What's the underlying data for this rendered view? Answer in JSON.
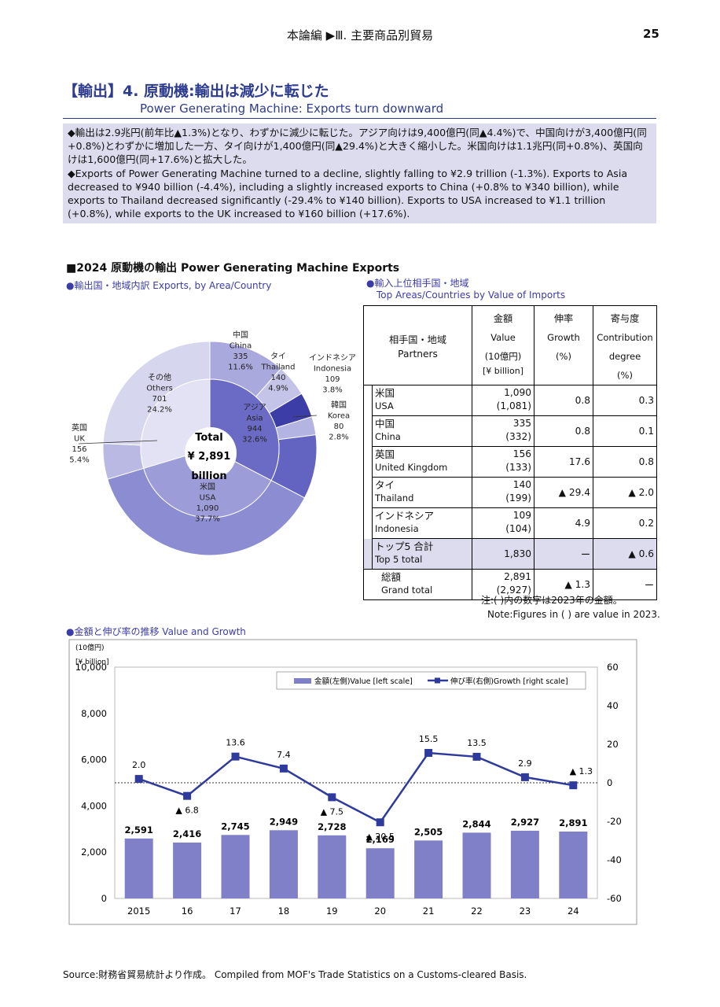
{
  "header": {
    "section": "本論編 ▶Ⅲ. 主要商品別貿易",
    "page": "25"
  },
  "title": {
    "jp": "【輸出】4. 原動機:輸出は減少に転じた",
    "en": "Power Generating Machine: Exports turn downward"
  },
  "summary": {
    "jp": "◆輸出は2.9兆円(前年比▲1.3%)となり、わずかに減少に転じた。アジア向けは9,400億円(同▲4.4%)で、中国向けが3,400億円(同+0.8%)とわずかに増加した一方、タイ向けが1,400億円(同▲29.4%)と大きく縮小した。米国向けは1.1兆円(同+0.8%)、英国向けは1,600億円(同+17.6%)と拡大した。",
    "en": "◆Exports of Power Generating Machine turned to a decline, slightly falling to ¥2.9 trillion (-1.3%). Exports to Asia decreased to ¥940 billion (-4.4%), including a slightly increased exports to China (+0.8% to ¥340 billion), while exports to Thailand decreased significantly (-29.4% to ¥140 billion). Exports to USA increased to ¥1.1 trillion (+0.8%), while exports to the UK increased to ¥160 billion (+17.6%)."
  },
  "section_title": "■2024 原動機の輸出 Power Generating Machine Exports",
  "pie": {
    "label": "●輸出国・地域内訳 Exports, by Area/Country",
    "center": {
      "l1": "Total",
      "l2": "¥ 2,891",
      "l3": "billion"
    },
    "outer": [
      {
        "jp": "中国",
        "en": "China",
        "value": "335",
        "pct": "11.6%",
        "v": 335,
        "color": "#a9a9dd"
      },
      {
        "jp": "タイ",
        "en": "Thailand",
        "value": "140",
        "pct": "4.9%",
        "v": 140,
        "color": "#c4c4e8"
      },
      {
        "jp": "インドネシア",
        "en": "Indonesia",
        "value": "109",
        "pct": "3.8%",
        "v": 109,
        "color": "#3d3da8"
      },
      {
        "jp": "韓国",
        "en": "Korea",
        "value": "80",
        "pct": "2.8%",
        "v": 80,
        "color": "#b4b4e2"
      },
      {
        "jp": "",
        "en": "",
        "value": "",
        "pct": "",
        "v": 280,
        "color": "#6363c2"
      },
      {
        "jp": "米国",
        "en": "USA",
        "value": "1,090",
        "pct": "37.7%",
        "v": 1090,
        "color": "#8c8cd2"
      },
      {
        "jp": "英国",
        "en": "UK",
        "value": "156",
        "pct": "5.4%",
        "v": 156,
        "color": "#b9b9e4"
      },
      {
        "jp": "その他",
        "en": "Others",
        "value": "701",
        "pct": "24.2%",
        "v": 701,
        "color": "#d6d6ef"
      }
    ],
    "inner": [
      {
        "jp": "アジア",
        "en": "Asia",
        "value": "944",
        "pct": "32.6%",
        "v": 944,
        "color": "#6b6bc6"
      },
      {
        "jp": "",
        "en": "",
        "value": "",
        "pct": "",
        "v": 1090,
        "color": "#9c9cd9"
      },
      {
        "jp": "",
        "en": "",
        "value": "",
        "pct": "",
        "v": 857,
        "color": "#e2e2f4"
      }
    ]
  },
  "table": {
    "label1": "●輸入上位相手国・地域",
    "label2": "Top Areas/Countries by Value of Imports",
    "headers": {
      "partner_jp": "相手国・地域",
      "partner_en": "Partners",
      "value_jp": "金額",
      "value_en": "Value",
      "value_unit": "(10億円)",
      "value_unit_en": "[¥ billion]",
      "growth_jp": "伸率",
      "growth_en": "Growth",
      "growth_unit": "(%)",
      "contrib_jp": "寄与度",
      "contrib_en": "Contribution",
      "contrib_en2": "degree",
      "contrib_unit": "(%)"
    },
    "rows": [
      {
        "jp": "米国",
        "en": "USA",
        "value": "1,090",
        "prev": "(1,081)",
        "growth": "0.8",
        "contrib": "0.3"
      },
      {
        "jp": "中国",
        "en": "China",
        "value": "335",
        "prev": "(332)",
        "growth": "0.8",
        "contrib": "0.1"
      },
      {
        "jp": "英国",
        "en": "United Kingdom",
        "value": "156",
        "prev": "(133)",
        "growth": "17.6",
        "contrib": "0.8"
      },
      {
        "jp": "タイ",
        "en": "Thailand",
        "value": "140",
        "prev": "(199)",
        "growth": "▲ 29.4",
        "contrib": "▲ 2.0"
      },
      {
        "jp": "インドネシア",
        "en": "Indonesia",
        "value": "109",
        "prev": "(104)",
        "growth": "4.9",
        "contrib": "0.2"
      }
    ],
    "top5": {
      "jp": "トップ5 合計",
      "en": "Top 5 total",
      "value": "1,830",
      "growth": "ー",
      "contrib": "▲ 0.6"
    },
    "total": {
      "jp": "総額",
      "en": "Grand total",
      "value": "2,891",
      "prev": "(2,927)",
      "growth": "▲ 1.3",
      "contrib": "ー"
    },
    "note_jp": "注:( )内の数字は2023年の金額。",
    "note_en": "Note:Figures in ( ) are value in 2023."
  },
  "chart_label": "●金額と伸び率の推移 Value and Growth",
  "chart_data": {
    "type": "bar+line",
    "categories": [
      "2015",
      "16",
      "17",
      "18",
      "19",
      "20",
      "21",
      "22",
      "23",
      "24"
    ],
    "series": [
      {
        "name": "金額(左側)Value [left scale]",
        "type": "bar",
        "axis": "left",
        "values": [
          2591,
          2416,
          2745,
          2949,
          2728,
          2169,
          2505,
          2844,
          2927,
          2891
        ],
        "labels": [
          "2,591",
          "2,416",
          "2,745",
          "2,949",
          "2,728",
          "2,169",
          "2,505",
          "2,844",
          "2,927",
          "2,891"
        ]
      },
      {
        "name": "伸び率(右側)Growth [right scale]",
        "type": "line",
        "axis": "right",
        "values": [
          2.0,
          -6.8,
          13.6,
          7.4,
          -7.5,
          -20.5,
          15.5,
          13.5,
          2.9,
          -1.3
        ],
        "labels": [
          "2.0",
          "▲ 6.8",
          "13.6",
          "7.4",
          "▲ 7.5",
          "▲ 20.5",
          "15.5",
          "13.5",
          "2.9",
          "▲ 1.3"
        ]
      }
    ],
    "yleft": {
      "label1": "(10億円)",
      "label2": "[¥ billion]",
      "min": 0,
      "max": 10000,
      "ticks": [
        "0",
        "2,000",
        "4,000",
        "6,000",
        "8,000",
        "10,000"
      ]
    },
    "yright": {
      "min": -60,
      "max": 60,
      "ticks": [
        "-60",
        "-40",
        "-20",
        "0",
        "20",
        "40",
        "60"
      ]
    },
    "colors": {
      "bar": "#8080c8",
      "line": "#2e3a9c"
    }
  },
  "source": "Source:財務省貿易統計より作成。 Compiled from MOF's Trade Statistics on a Customs-cleared Basis."
}
